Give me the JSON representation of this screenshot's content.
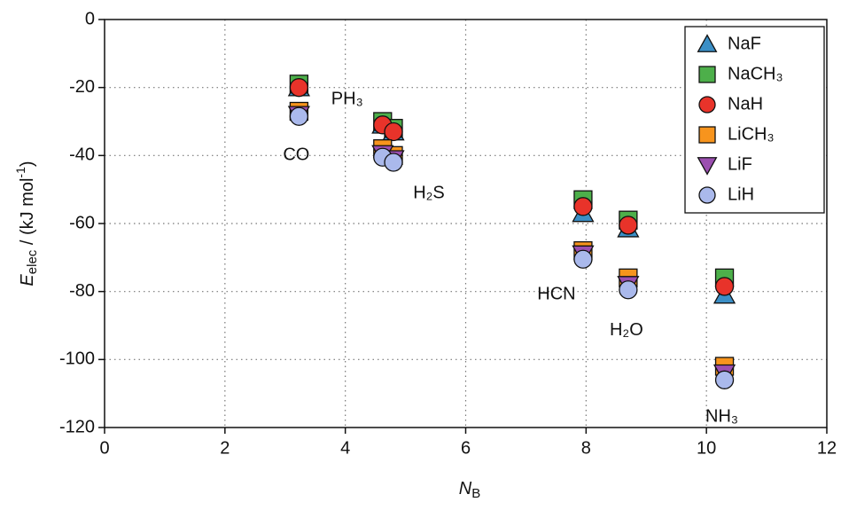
{
  "chart_data": {
    "type": "scatter",
    "x_label": {
      "main": "N",
      "sub": "B"
    },
    "y_label": {
      "main": "E",
      "sub": "elec",
      "unit": " / (kJ mol",
      "sup": "-1",
      "close": ")"
    },
    "xlim": [
      0,
      12
    ],
    "xticks": [
      0,
      2,
      4,
      6,
      8,
      10,
      12
    ],
    "ylim": [
      -120,
      0
    ],
    "yticks": [
      -120,
      -100,
      -80,
      -60,
      -40,
      -20,
      0
    ],
    "grid": true,
    "legend": "upper right",
    "x": [
      3.23,
      4.62,
      4.8,
      7.95,
      8.7,
      10.3
    ],
    "annotations": [
      "CO",
      "PH₃",
      "H₂S",
      "HCN",
      "H₂O",
      "NH₃"
    ],
    "series": [
      {
        "name": "NaF",
        "marker": "triangle-up",
        "color": "#3b8fc6",
        "values": [
          -20,
          -31,
          -33,
          -57,
          -61.5,
          -81
        ]
      },
      {
        "name": "NaCH₃",
        "marker": "square",
        "color": "#4daf4a",
        "values": [
          -19,
          -30,
          -32,
          -53,
          -59,
          -76
        ]
      },
      {
        "name": "NaH",
        "marker": "circle",
        "color": "#e8332a",
        "values": [
          -20,
          -31,
          -33,
          -55,
          -60.5,
          -78.5
        ]
      },
      {
        "name": "LiCH₃",
        "marker": "square",
        "color": "#f7941d",
        "values": [
          -27,
          -38,
          -40,
          -68,
          -76,
          -102
        ]
      },
      {
        "name": "LiF",
        "marker": "triangle-down",
        "color": "#9b4fb0",
        "values": [
          -28,
          -39.5,
          -41,
          -69,
          -78,
          -104
        ]
      },
      {
        "name": "LiH",
        "marker": "circle",
        "color": "#aab9ec",
        "values": [
          -28.5,
          -40.5,
          -42,
          -70.5,
          -79.5,
          -106
        ]
      }
    ]
  }
}
